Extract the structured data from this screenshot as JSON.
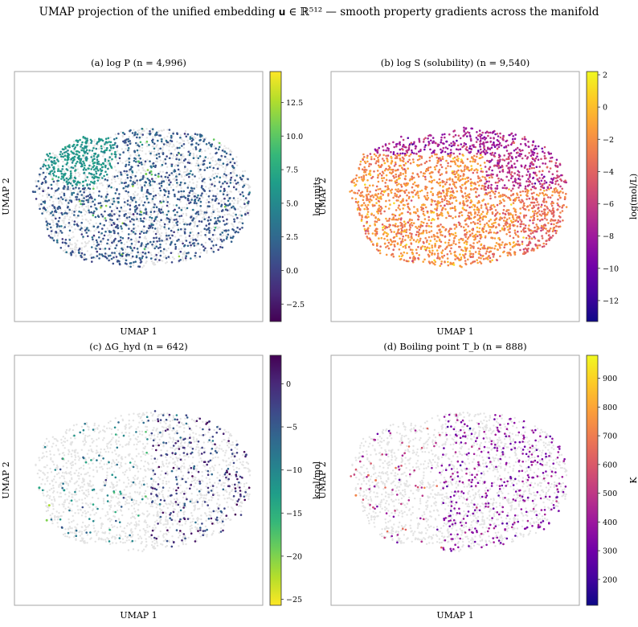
{
  "suptitle": "UMAP projection of the unified embedding 𝐮 ∈ ℝ⁵¹² — smooth property gradients across the manifold",
  "chart_data": [
    {
      "type": "scatter",
      "title": "(a) log P   (n = 4,996)",
      "xlabel": "UMAP 1",
      "ylabel": "UMAP 2",
      "colorbar_label": "log units",
      "colormap": "viridis",
      "clim": [
        -3.8,
        14.8
      ],
      "colorbar_ticks": [
        -2.5,
        0.0,
        2.5,
        5.0,
        7.5,
        10.0,
        12.5
      ],
      "colorbar_tick_labels": [
        "−2.5",
        "0.0",
        "2.5",
        "5.0",
        "7.5",
        "10.0",
        "12.5"
      ],
      "n": 4996,
      "value_distribution": "dense dark-teal cluster (~6) in the upper-left, blue (~0–2) across the lower and right regions, a few light-green high values near the centre-top",
      "background_points": true
    },
    {
      "type": "scatter",
      "title": "(b) log S (solubility)   (n = 9,540)",
      "xlabel": "UMAP 1",
      "ylabel": "UMAP 2",
      "colorbar_label": "log(mol/L)",
      "colormap": "plasma",
      "clim": [
        -13.3,
        2.2
      ],
      "colorbar_ticks": [
        2,
        0,
        -2,
        -4,
        -6,
        -8,
        -10,
        -12
      ],
      "colorbar_tick_labels": [
        "2",
        "0",
        "−2",
        "−4",
        "−6",
        "−8",
        "−10",
        "−12"
      ],
      "n": 9540,
      "value_distribution": "orange-yellow (−4 to 0) over most of the manifold, magenta/purple (−7 to −9) along the top edge and upper-right",
      "background_points": false
    },
    {
      "type": "scatter",
      "title": "(c) ΔG_hyd   (n = 642)",
      "xlabel": "UMAP 1",
      "ylabel": "UMAP 2",
      "colorbar_label": "kcal/mol",
      "colormap": "viridis_r",
      "clim": [
        -25.7,
        3.3
      ],
      "colorbar_ticks": [
        0,
        -5,
        -10,
        -15,
        -20,
        -25
      ],
      "colorbar_tick_labels": [
        "0",
        "−5",
        "−10",
        "−15",
        "−20",
        "−25"
      ],
      "n": 642,
      "value_distribution": "sparse; dark blue/purple (−2 to 2) concentrated on the right side, teal/green (−10 to −20) scattered on the left",
      "background_points": true
    },
    {
      "type": "scatter",
      "title": "(d) Boiling point T_b   (n = 888)",
      "xlabel": "UMAP 1",
      "ylabel": "UMAP 2",
      "colorbar_label": "K",
      "colormap": "plasma",
      "clim": [
        110,
        980
      ],
      "colorbar_ticks": [
        200,
        300,
        400,
        500,
        600,
        700,
        800,
        900
      ],
      "colorbar_tick_labels": [
        "200",
        "300",
        "400",
        "500",
        "600",
        "700",
        "800",
        "900"
      ],
      "n": 888,
      "value_distribution": "mostly purple/magenta (300–450 K) on the right and centre, a few orange (650–800 K) points on the left",
      "background_points": true
    }
  ],
  "colors": {
    "background_points": "#e3e3e3",
    "axes_frame": "#a6a6a6",
    "viridis": [
      "#440154",
      "#482878",
      "#3e4989",
      "#31688e",
      "#26828e",
      "#1f9e89",
      "#35b779",
      "#6ece58",
      "#b5de2b",
      "#fde725"
    ],
    "plasma": [
      "#0d0887",
      "#46039f",
      "#7201a8",
      "#9c179e",
      "#bd3786",
      "#d8576b",
      "#ed7953",
      "#fb9f3a",
      "#fdca26",
      "#f0f921"
    ]
  }
}
